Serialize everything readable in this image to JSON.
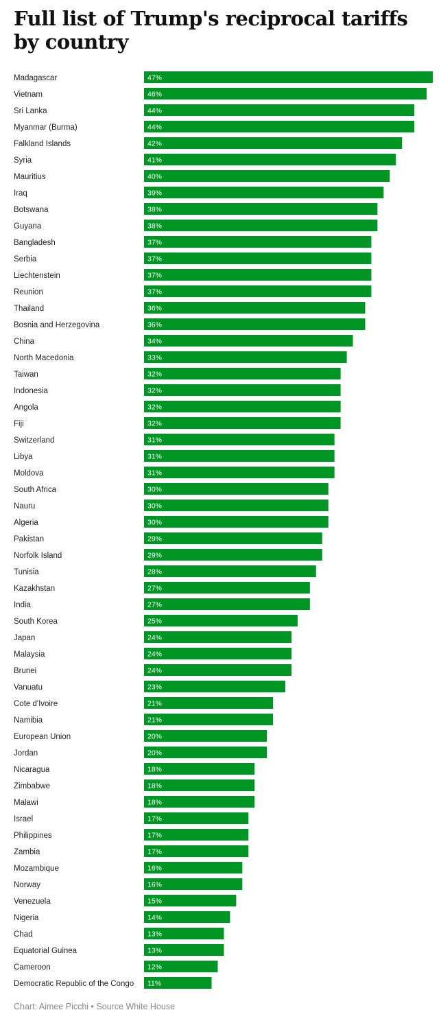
{
  "title": "Full list of Trump's reciprocal tariffs by country",
  "credit": "Chart: Aimee Picchi • Source White House",
  "colors": {
    "bar": "#009623",
    "value_text": "#ffffff",
    "category_text": "#222222"
  },
  "chart_data": {
    "type": "bar",
    "orientation": "horizontal",
    "value_suffix": "%",
    "categories": [
      "Madagascar",
      "Vietnam",
      "Sri Lanka",
      "Myanmar (Burma)",
      "Falkland Islands",
      "Syria",
      "Mauritius",
      "Iraq",
      "Botswana",
      "Guyana",
      "Bangladesh",
      "Serbia",
      "Liechtenstein",
      "Reunion",
      "Thailand",
      "Bosnia and Herzegovina",
      "China",
      "North Macedonia",
      "Taiwan",
      "Indonesia",
      "Angola",
      "Fiji",
      "Switzerland",
      "Libya",
      "Moldova",
      "South Africa",
      "Nauru",
      "Algeria",
      "Pakistan",
      "Norfolk Island",
      "Tunisia",
      "Kazakhstan",
      "India",
      "South Korea",
      "Japan",
      "Malaysia",
      "Brunei",
      "Vanuatu",
      "Cote d'Ivoire",
      "Namibia",
      "European Union",
      "Jordan",
      "Nicaragua",
      "Zimbabwe",
      "Malawi",
      "Israel",
      "Philippines",
      "Zambia",
      "Mozambique",
      "Norway",
      "Venezuela",
      "Nigeria",
      "Chad",
      "Equatorial Guinea",
      "Cameroon",
      "Democratic Republic of the Congo"
    ],
    "values": [
      47,
      46,
      44,
      44,
      42,
      41,
      40,
      39,
      38,
      38,
      37,
      37,
      37,
      37,
      36,
      36,
      34,
      33,
      32,
      32,
      32,
      32,
      31,
      31,
      31,
      30,
      30,
      30,
      29,
      29,
      28,
      27,
      27,
      25,
      24,
      24,
      24,
      23,
      21,
      21,
      20,
      20,
      18,
      18,
      18,
      17,
      17,
      17,
      16,
      16,
      15,
      14,
      13,
      13,
      12,
      11
    ],
    "xlim": [
      0,
      47
    ],
    "grid": false,
    "legend": false
  }
}
